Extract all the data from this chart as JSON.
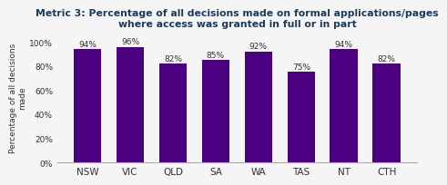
{
  "title": "Metric 3: Percentage of all decisions made on formal applications/pages\nwhere access was granted in full or in part",
  "categories": [
    "NSW",
    "VIC",
    "QLD",
    "SA",
    "WA",
    "TAS",
    "NT",
    "CTH"
  ],
  "values": [
    94,
    96,
    82,
    85,
    92,
    75,
    94,
    82
  ],
  "bar_color": "#4a0080",
  "ylabel": "Percentage of all decisions\nmade",
  "ylim": [
    0,
    108
  ],
  "yticks": [
    0,
    20,
    40,
    60,
    80,
    100
  ],
  "ytick_labels": [
    "0%",
    "20%",
    "40%",
    "60%",
    "80%",
    "100%"
  ],
  "title_color": "#1a3a5c",
  "title_fontsize": 7.8,
  "ylabel_fontsize": 6.5,
  "xlabel_fontsize": 7.5,
  "bar_label_fontsize": 6.5,
  "bar_label_color": "#333333",
  "background_color": "#f5f5f5",
  "bar_width": 0.65
}
